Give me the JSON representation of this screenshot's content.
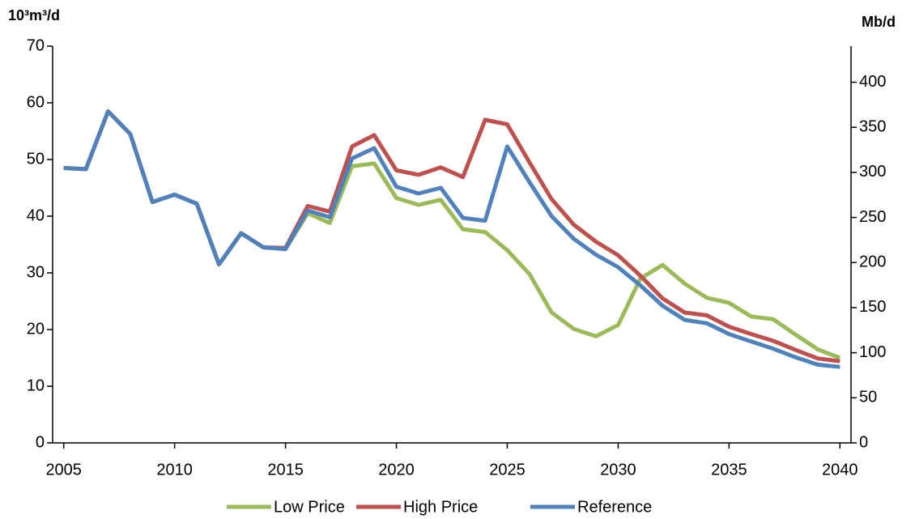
{
  "chart_data": {
    "type": "line",
    "ylabel": "10³m³/d",
    "y2label": "Mb/d",
    "x": [
      2005,
      2006,
      2007,
      2008,
      2009,
      2010,
      2011,
      2012,
      2013,
      2014,
      2015,
      2016,
      2017,
      2018,
      2019,
      2020,
      2021,
      2022,
      2023,
      2024,
      2025,
      2026,
      2027,
      2028,
      2029,
      2030,
      2031,
      2032,
      2033,
      2034,
      2035,
      2036,
      2037,
      2038,
      2039,
      2040
    ],
    "series": [
      {
        "name": "Low Price",
        "color": "#9bbb59",
        "values": [
          48.5,
          48.3,
          58.5,
          54.5,
          42.5,
          43.8,
          42.2,
          31.5,
          37,
          34.5,
          34.2,
          40.5,
          38.8,
          48.8,
          49.3,
          43.2,
          42,
          42.9,
          37.7,
          37.2,
          34,
          29.8,
          23,
          20.1,
          18.8,
          20.8,
          29,
          31.4,
          28.1,
          25.6,
          24.7,
          22.3,
          21.8,
          19.1,
          16.5,
          15
        ]
      },
      {
        "name": "High Price",
        "color": "#c0504d",
        "values": [
          48.5,
          48.3,
          58.5,
          54.5,
          42.5,
          43.8,
          42.2,
          31.5,
          37,
          34.5,
          34.4,
          41.8,
          40.8,
          52.3,
          54.3,
          48.1,
          47.3,
          48.6,
          46.9,
          57,
          56.2,
          49.5,
          43,
          38.5,
          35.5,
          33.1,
          29.5,
          25.5,
          23,
          22.5,
          20.5,
          19.2,
          18,
          16.4,
          14.9,
          14.4
        ]
      },
      {
        "name": "Reference",
        "color": "#4f81bd",
        "values": [
          48.5,
          48.3,
          58.5,
          54.5,
          42.5,
          43.8,
          42.2,
          31.5,
          37,
          34.5,
          34.2,
          41,
          39.8,
          50.2,
          52,
          45.2,
          44,
          45,
          39.7,
          39.2,
          52.3,
          46,
          40,
          36,
          33.2,
          31,
          27.8,
          24.2,
          21.7,
          21.1,
          19.2,
          17.9,
          16.6,
          15.1,
          13.8,
          13.4
        ]
      }
    ],
    "xlim": [
      2004.5,
      2040.5
    ],
    "xticks": [
      2005,
      2010,
      2015,
      2020,
      2025,
      2030,
      2035,
      2040
    ],
    "ylim": [
      0,
      70
    ],
    "yticks": [
      0,
      10,
      20,
      30,
      40,
      50,
      60,
      70
    ],
    "y2lim": [
      0,
      440
    ],
    "y2ticks": [
      0,
      50,
      100,
      150,
      200,
      250,
      300,
      350,
      400
    ],
    "grid": false,
    "legend": "bottom"
  }
}
